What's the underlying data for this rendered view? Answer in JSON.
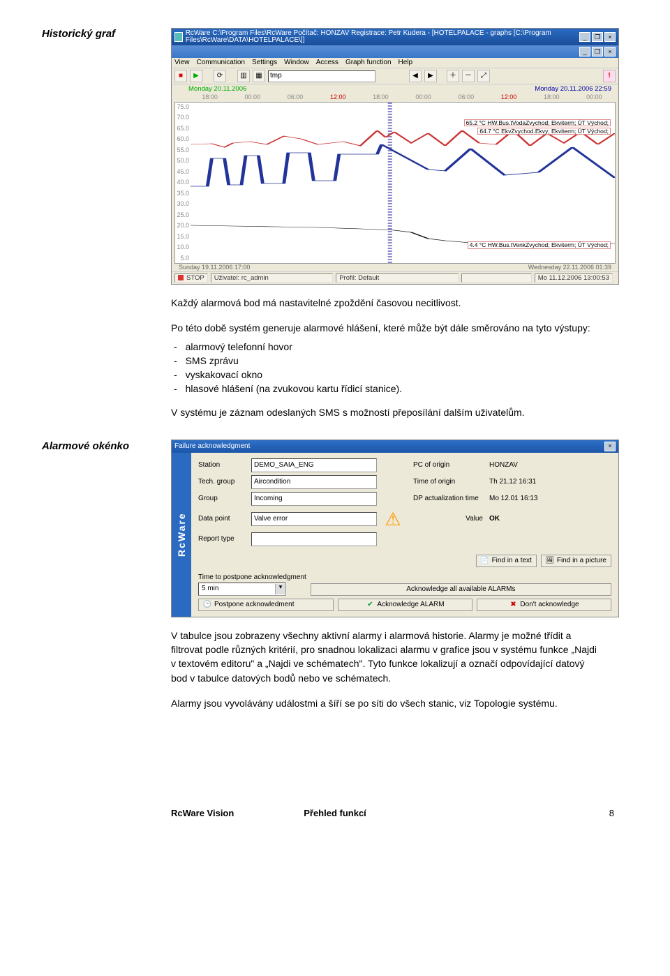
{
  "sideHeadings": {
    "h1": "Historický graf",
    "h2": "Alarmové okénko"
  },
  "para1": "Každý alarmová bod má nastavitelné zpoždění časovou necitlivost.",
  "para2": "Po této době systém generuje alarmové hlášení, které může být dále směrováno na tyto výstupy:",
  "outputs": [
    "alarmový telefonní hovor",
    "SMS zprávu",
    "vyskakovací okno",
    "hlasové hlášení (na zvukovou kartu řídicí stanice)."
  ],
  "para3": "V systému je záznam odeslaných SMS s možností přeposílání dalším uživatelům.",
  "para4": "V tabulce jsou zobrazeny všechny aktivní alarmy i alarmová historie. Alarmy je možné třídit a filtrovat podle různých kritérií, pro snadnou lokalizaci alarmu v grafice jsou v systému funkce „Najdi v textovém editoru\" a „Najdi ve schématech\". Tyto funkce lokalizují a označí odpovídající datový bod v tabulce datových bodů nebo ve schématech.",
  "para5": "Alarmy jsou vyvolávány událostmi a šíří se po síti do všech stanic, viz Topologie systému.",
  "footer": {
    "left": "RcWare Vision",
    "center": "Přehled funkcí",
    "page": "8"
  },
  "graphWin": {
    "title": "RcWare C:\\Program Files\\RcWare  Počítač: HONZAV  Registrace: Petr Kudera - [HOTELPALACE - graphs [C:\\Program Files\\RcWare\\DATA\\HOTELPALACE\\]]",
    "menu": [
      "View",
      "Communication",
      "Settings",
      "Window",
      "Access",
      "Graph function",
      "Help"
    ],
    "yCombo": "tmp",
    "dateLeft": "Monday 20.11.2006",
    "dateRight": "Monday 20.11.2006 22:59",
    "tickHours": [
      "18:00",
      "00:00",
      "06:00",
      "12:00",
      "18:00",
      "00:00",
      "06:00",
      "12:00",
      "18:00",
      "00:00"
    ],
    "yTicks": [
      "75.0",
      "70.0",
      "65.0",
      "60.0",
      "55.0",
      "50.0",
      "45.0",
      "40.0",
      "35.0",
      "30.0",
      "25.0",
      "20.0",
      "15.0",
      "10.0",
      "5.0"
    ],
    "labels": {
      "lbl1": "65.2 °C  HW.Bus.tVodaZvychod; Ekviterm; ÚT Východ;",
      "lbl2": "64.7 °C  EkvZvychod.Ekvy; Ekviterm; ÚT Východ;",
      "lbl3": "4.4 °C  HW.Bus.tVenkZvychod; Ekviterm; ÚT Východ;"
    },
    "bottomLeftDate": "Sunday 19.11.2006 17:00",
    "bottomRightDate": "Wednesday 22.11.2006 01:39",
    "status": {
      "stop": "STOP",
      "user": "Uživatel: rc_admin",
      "profile": "Profil: Default",
      "time": "Mo 11.12.2006 13:00:53"
    },
    "chart": {
      "line_red": "0,60 5,59 8,64 10,58 14,56 18,60 22,48 26,52 30,60 36,56 40,62 44,40 46,50 48,42 52,58 56,44 60,62 64,40 68,58 72,60 76,40 80,62 84,44 88,58 92,42 96,60 100,44",
      "line_blue": "0,120 4,120 5,80 8,80 9,118 12,118 13,76 16,76 17,116 22,116 23,72 28,72 29,112 34,112 35,74 44,74 45,60 56,96 60,98 66,66 74,104 82,100 90,64 100,108",
      "line_black": "0,176 10,177 20,178 30,179 40,181 48,183 52,186 56,195 60,198 66,201 72,204 78,205 84,204 90,203 96,202 100,202",
      "colors": {
        "red": "#cc3333",
        "blue": "#223399",
        "black": "#111111"
      }
    }
  },
  "ackWin": {
    "title": "Failure acknowledgment",
    "sidebar": "RcWare",
    "labels": {
      "station": "Station",
      "techgroup": "Tech. group",
      "group": "Group",
      "datapoint": "Data point",
      "report": "Report type",
      "pc": "PC of origin",
      "time": "Time of origin",
      "dp": "DP actualization time",
      "value": "Value"
    },
    "values": {
      "station": "DEMO_SAIA_ENG",
      "techgroup": "Aircondition",
      "group": "Incoming",
      "datapoint": "Valve error",
      "report": "",
      "pc": "HONZAV",
      "time": "Th 21.12 16:31",
      "dp": "Mo 12.01 16:13",
      "value": "OK"
    },
    "buttons": {
      "findText": "Find in a text",
      "findPic": "Find in a picture",
      "postponeLbl": "Time to postpone acknowledgment",
      "postponeVal": "5 min",
      "postponeBtn": "Postpone acknowledment",
      "ackAll": "Acknowledge all available ALARMs",
      "ack": "Acknowledge ALARM",
      "dont": "Don't acknowledge"
    }
  }
}
